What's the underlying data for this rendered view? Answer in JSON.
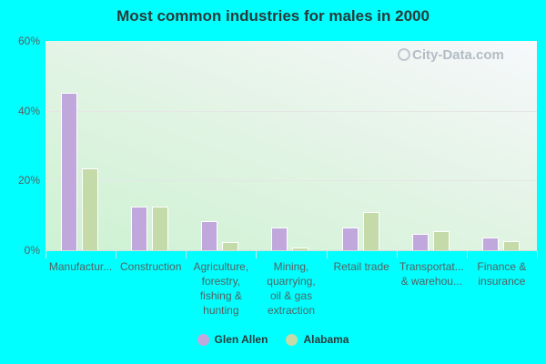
{
  "chart_data": {
    "type": "bar",
    "title": "Most common industries for males in 2000",
    "xlabel": "",
    "ylabel": "",
    "ylim": [
      0,
      60
    ],
    "yticks": [
      "0%",
      "20%",
      "40%",
      "60%"
    ],
    "grid": true,
    "legend_position": "bottom",
    "categories": [
      "Manufactur...",
      "Construction",
      "Agriculture,\nforestry,\nfishing &\nhunting",
      "Mining,\nquarrying,\noil & gas\nextraction",
      "Retail trade",
      "Transportat...\n& warehou...",
      "Finance &\ninsurance"
    ],
    "series": [
      {
        "name": "Glen Allen",
        "color": "#c0a8dc",
        "values": [
          45.1,
          12.6,
          8.3,
          6.4,
          6.4,
          4.6,
          3.6
        ]
      },
      {
        "name": "Alabama",
        "color": "#c4daa8",
        "values": [
          23.4,
          12.6,
          2.3,
          0.7,
          10.9,
          5.4,
          2.5
        ]
      }
    ]
  },
  "watermark": "City-Data.com"
}
